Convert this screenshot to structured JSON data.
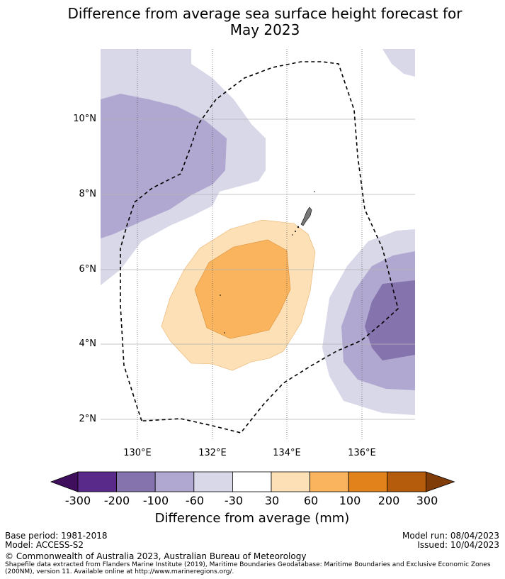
{
  "title": "Difference from average sea surface height forecast for\nMay 2023",
  "map": {
    "lat_labels": [
      "10°N",
      "8°N",
      "6°N",
      "4°N",
      "2°N"
    ],
    "lon_labels": [
      "130°E",
      "132°E",
      "134°E",
      "136°E"
    ],
    "extent": {
      "lon": [
        129.0,
        137.4
      ],
      "lat": [
        1.4,
        11.9
      ]
    },
    "features": [
      "eez-boundary-dashed",
      "palau-islands"
    ]
  },
  "colorbar": {
    "title": "Difference from average (mm)",
    "ticks": [
      "-300",
      "-200",
      "-100",
      "-60",
      "-30",
      "30",
      "60",
      "100",
      "200",
      "300"
    ],
    "colors": [
      "#3f0f5e",
      "#5a2a8a",
      "#8573ad",
      "#b0a8d0",
      "#d8d8e9",
      "#ffffff",
      "#fde0b6",
      "#f9b45d",
      "#e2821a",
      "#b55b0c",
      "#7f3b08"
    ]
  },
  "footer": {
    "base_period": "Base period: 1981-2018",
    "model": "Model: ACCESS-S2",
    "model_run": "Model run: 08/04/2023",
    "issued": "Issued: 10/04/2023",
    "copyright": "© Commonwealth of Australia 2023, Australian Bureau of Meteorology",
    "shapefile": "Shapefile data extracted from Flanders Marine Institute (2019), Maritime Boundaries Geodatabase: Maritime Boundaries and Exclusive Economic Zones (200NM), version 11. Available online at http://www.marineregions.org/."
  }
}
